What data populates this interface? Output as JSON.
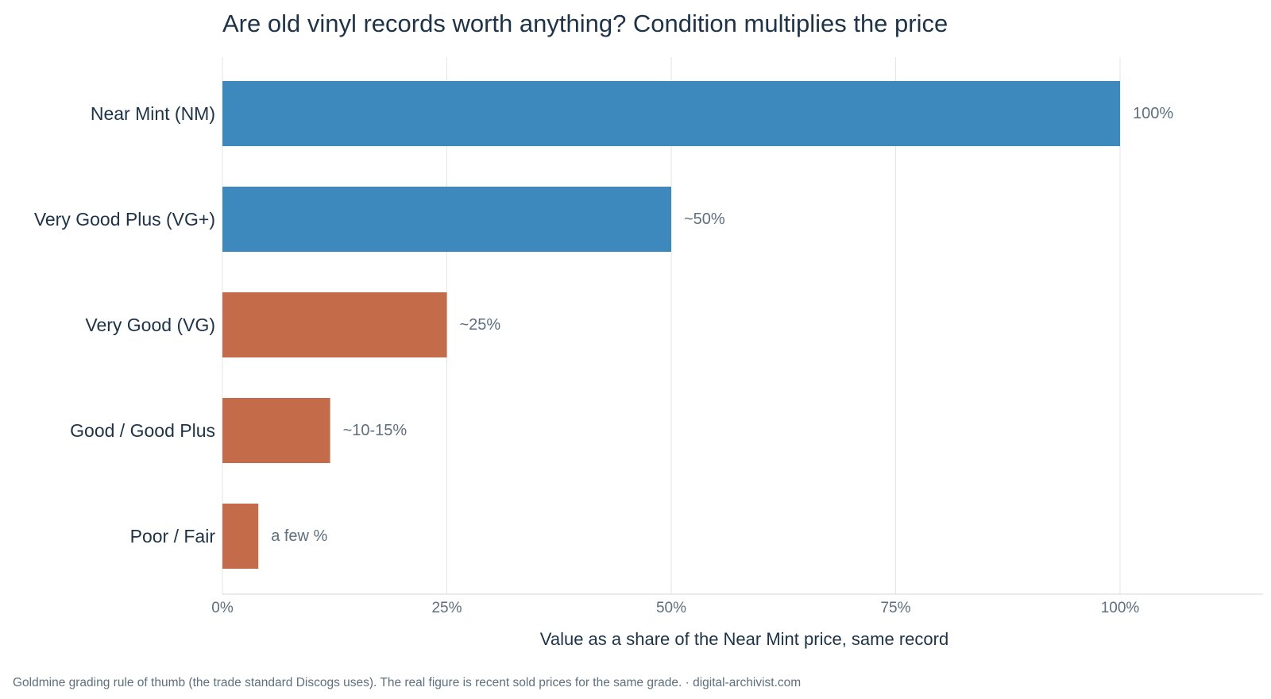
{
  "chart_data": {
    "type": "bar",
    "orientation": "horizontal",
    "title": "Are old vinyl records worth anything? Condition multiplies the price",
    "xlabel": "Value as a share of the Near Mint price, same record",
    "ylabel": "",
    "xlim": [
      0,
      115
    ],
    "x_ticks": [
      0,
      25,
      50,
      75,
      100
    ],
    "x_tick_labels": [
      "0%",
      "25%",
      "50%",
      "75%",
      "100%"
    ],
    "grid": "vertical",
    "legend": "none",
    "categories": [
      "Near Mint (NM)",
      "Very Good Plus (VG+)",
      "Very Good (VG)",
      "Good / Good Plus",
      "Poor / Fair"
    ],
    "values": [
      100,
      50,
      25,
      12,
      4
    ],
    "data_labels": [
      "100%",
      "~50%",
      "~25%",
      "~10-15%",
      "a few %"
    ],
    "bar_colors": [
      "#3d89bd",
      "#3d89bd",
      "#c46b4a",
      "#c46b4a",
      "#c46b4a"
    ],
    "caption": "Goldmine grading rule of thumb (the trade standard Discogs uses). The real figure is recent sold prices for the same grade.  ·  digital-archivist.com"
  }
}
